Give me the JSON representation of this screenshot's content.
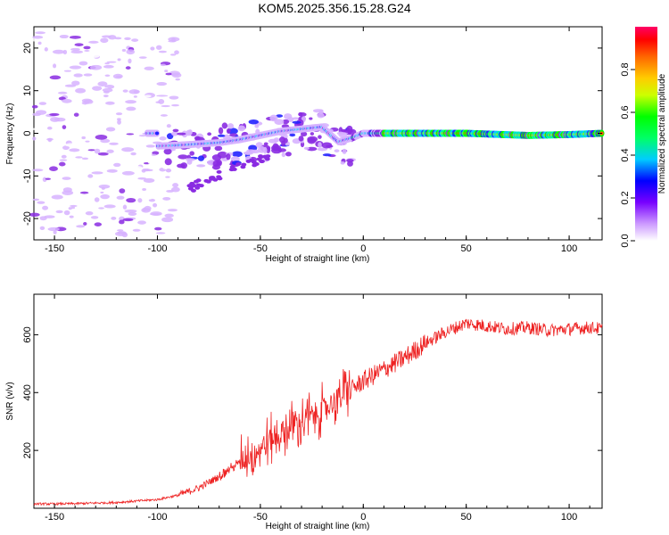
{
  "title": "KOM5.2025.356.15.28.G24",
  "chart_data": [
    {
      "type": "heatmap",
      "xlabel": "Height of straight line (km)",
      "ylabel": "Frequency (Hz)",
      "xlim": [
        -160,
        116
      ],
      "ylim": [
        -25,
        25
      ],
      "xticks": [
        -150,
        -100,
        -50,
        0,
        50,
        100
      ],
      "yticks": [
        -20,
        -10,
        0,
        10,
        20
      ],
      "colorbar": {
        "label": "Normalized spectral amplitude",
        "range": [
          0,
          1
        ],
        "ticks": [
          0.0,
          0.2,
          0.4,
          0.6,
          0.8
        ]
      },
      "ridge": [
        {
          "x": -100,
          "y": -3
        },
        {
          "x": -90,
          "y": -2.8
        },
        {
          "x": -80,
          "y": -2.5
        },
        {
          "x": -70,
          "y": -2.2
        },
        {
          "x": -60,
          "y": -1.5
        },
        {
          "x": -50,
          "y": -0.5
        },
        {
          "x": -40,
          "y": 0.5
        },
        {
          "x": -30,
          "y": 1
        },
        {
          "x": -20,
          "y": 1.5
        },
        {
          "x": -12,
          "y": -2
        },
        {
          "x": -5,
          "y": -1
        },
        {
          "x": 0,
          "y": 0
        },
        {
          "x": 20,
          "y": 0
        },
        {
          "x": 50,
          "y": 0
        },
        {
          "x": 80,
          "y": -0.5
        },
        {
          "x": 100,
          "y": -0.3
        },
        {
          "x": 116,
          "y": 0
        }
      ]
    },
    {
      "type": "line",
      "xlabel": "Height of straight line (km)",
      "ylabel": "SNR (v/v)",
      "xlim": [
        -160,
        116
      ],
      "ylim": [
        0,
        740
      ],
      "xticks": [
        -150,
        -100,
        -50,
        0,
        50,
        100
      ],
      "yticks": [
        200,
        400,
        600
      ],
      "series": [
        {
          "name": "SNR",
          "color": "#ee2222",
          "x": [
            -160,
            -150,
            -140,
            -130,
            -120,
            -110,
            -100,
            -90,
            -80,
            -70,
            -60,
            -50,
            -40,
            -30,
            -20,
            -10,
            0,
            10,
            20,
            30,
            40,
            50,
            60,
            70,
            80,
            90,
            100,
            110,
            116
          ],
          "y": [
            15,
            15,
            16,
            18,
            20,
            25,
            30,
            45,
            70,
            110,
            160,
            210,
            260,
            300,
            340,
            390,
            440,
            480,
            520,
            570,
            610,
            640,
            630,
            620,
            625,
            615,
            620,
            625,
            620
          ]
        }
      ]
    }
  ]
}
